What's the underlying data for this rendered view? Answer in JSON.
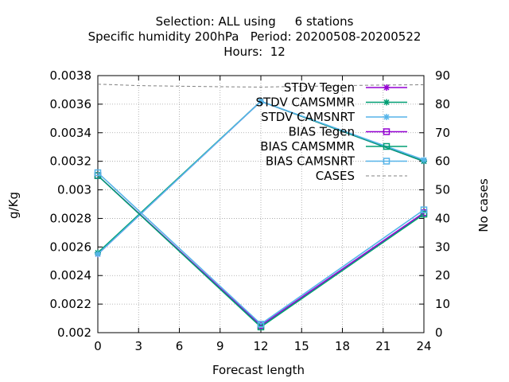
{
  "title_lines": [
    "Selection: ALL using     6 stations",
    "Specific humidity 200hPa   Period: 20200508-20200522",
    "Hours:  12"
  ],
  "chart_data": {
    "type": "line",
    "xlabel": "Forecast length",
    "ylabel": "g/Kg",
    "y2label": "No cases",
    "x": [
      0,
      12,
      24
    ],
    "xticks": [
      0,
      3,
      6,
      9,
      12,
      15,
      18,
      21,
      24
    ],
    "xlim": [
      0,
      24
    ],
    "ylim": [
      0.002,
      0.0038
    ],
    "yticks": [
      "0.002",
      "0.0022",
      "0.0024",
      "0.0026",
      "0.0028",
      "0.003",
      "0.0032",
      "0.0034",
      "0.0036",
      "0.0038"
    ],
    "y2lim": [
      0,
      90
    ],
    "y2ticks": [
      "0",
      "10",
      "20",
      "30",
      "40",
      "50",
      "60",
      "70",
      "80",
      "90"
    ],
    "grid": true,
    "legend_position": "top-right",
    "series": [
      {
        "name": "STDV Tegen",
        "color": "#9400d3",
        "marker": "star",
        "axis": "y",
        "dash": false,
        "values": [
          0.00255,
          0.00362,
          0.0032
        ]
      },
      {
        "name": "STDV CAMSMMR",
        "color": "#009e73",
        "marker": "star",
        "axis": "y",
        "dash": false,
        "values": [
          0.00256,
          0.00362,
          0.0032
        ]
      },
      {
        "name": "STDV CAMSNRT",
        "color": "#56b4e9",
        "marker": "star",
        "axis": "y",
        "dash": false,
        "values": [
          0.00255,
          0.00362,
          0.00321
        ]
      },
      {
        "name": "BIAS Tegen",
        "color": "#9400d3",
        "marker": "square",
        "axis": "y",
        "dash": false,
        "values": [
          0.0031,
          0.00205,
          0.00284
        ]
      },
      {
        "name": "BIAS CAMSMMR",
        "color": "#009e73",
        "marker": "square",
        "axis": "y",
        "dash": false,
        "values": [
          0.0031,
          0.00204,
          0.00283
        ]
      },
      {
        "name": "BIAS CAMSNRT",
        "color": "#56b4e9",
        "marker": "square",
        "axis": "y",
        "dash": false,
        "values": [
          0.00312,
          0.00206,
          0.00286
        ]
      },
      {
        "name": "CASES",
        "color": "#808080",
        "marker": "none",
        "axis": "y2",
        "dash": true,
        "x": [
          0,
          3,
          6,
          9,
          12,
          15,
          18,
          21,
          24
        ],
        "values": [
          87,
          86.5,
          86.3,
          86.1,
          86,
          86.2,
          86.5,
          86.7,
          86.8
        ]
      }
    ]
  }
}
